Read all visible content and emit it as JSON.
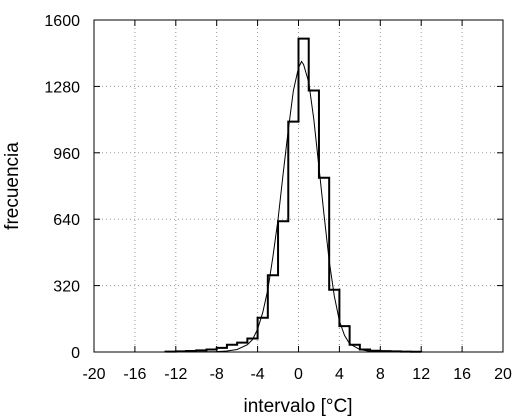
{
  "chart_data": {
    "type": "line",
    "xlabel": "intervalo [°C]",
    "ylabel": "frecuencia",
    "xlim": [
      -20,
      20
    ],
    "ylim": [
      0,
      1600
    ],
    "xticks": [
      -20,
      -16,
      -12,
      -8,
      -4,
      0,
      4,
      8,
      12,
      16,
      20
    ],
    "yticks": [
      0,
      320,
      640,
      960,
      1280,
      1600
    ],
    "grid": true,
    "histogram": {
      "bin_width": 1,
      "bins": [
        {
          "x0": -13,
          "value": 2
        },
        {
          "x0": -12,
          "value": 3
        },
        {
          "x0": -11,
          "value": 5
        },
        {
          "x0": -10,
          "value": 8
        },
        {
          "x0": -9,
          "value": 12
        },
        {
          "x0": -8,
          "value": 20
        },
        {
          "x0": -7,
          "value": 35
        },
        {
          "x0": -6,
          "value": 45
        },
        {
          "x0": -5,
          "value": 65
        },
        {
          "x0": -4,
          "value": 165
        },
        {
          "x0": -3,
          "value": 370
        },
        {
          "x0": -2,
          "value": 630
        },
        {
          "x0": -1,
          "value": 1110
        },
        {
          "x0": 0,
          "value": 1510
        },
        {
          "x0": 1,
          "value": 1260
        },
        {
          "x0": 2,
          "value": 840
        },
        {
          "x0": 3,
          "value": 300
        },
        {
          "x0": 4,
          "value": 125
        },
        {
          "x0": 5,
          "value": 35
        },
        {
          "x0": 6,
          "value": 12
        },
        {
          "x0": 7,
          "value": 6
        },
        {
          "x0": 8,
          "value": 4
        },
        {
          "x0": 9,
          "value": 3
        },
        {
          "x0": 10,
          "value": 2
        },
        {
          "x0": 11,
          "value": 1
        }
      ]
    },
    "fit_curve": {
      "points": [
        [
          -13,
          0
        ],
        [
          -10,
          0
        ],
        [
          -8,
          2
        ],
        [
          -7,
          5
        ],
        [
          -6,
          12
        ],
        [
          -5,
          35
        ],
        [
          -4.5,
          60
        ],
        [
          -4,
          110
        ],
        [
          -3.5,
          190
        ],
        [
          -3,
          300
        ],
        [
          -2.5,
          460
        ],
        [
          -2,
          640
        ],
        [
          -1.5,
          860
        ],
        [
          -1,
          1070
        ],
        [
          -0.5,
          1260
        ],
        [
          0,
          1370
        ],
        [
          0.3,
          1400
        ],
        [
          0.5,
          1385
        ],
        [
          1,
          1300
        ],
        [
          1.5,
          1120
        ],
        [
          2,
          890
        ],
        [
          2.5,
          660
        ],
        [
          3,
          440
        ],
        [
          3.5,
          270
        ],
        [
          4,
          150
        ],
        [
          4.5,
          80
        ],
        [
          5,
          40
        ],
        [
          6,
          12
        ],
        [
          7,
          3
        ],
        [
          8,
          1
        ],
        [
          10,
          0
        ],
        [
          12,
          0
        ]
      ]
    }
  }
}
